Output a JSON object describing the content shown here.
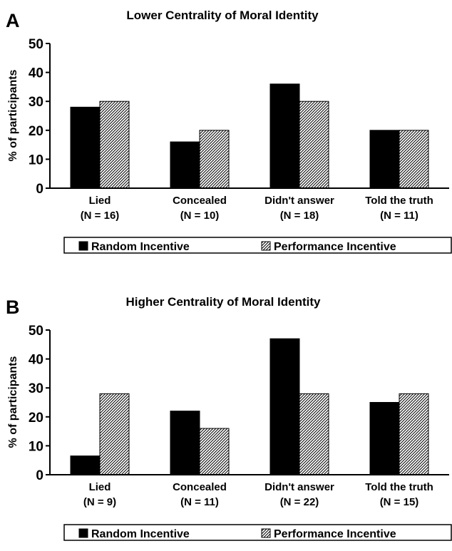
{
  "chart_data": [
    {
      "type": "bar",
      "panel_label": "A",
      "title": "Lower Centrality of Moral Identity",
      "ylabel": "% of participants",
      "xlabel": "",
      "ylim": [
        0,
        50
      ],
      "yticks": [
        0,
        10,
        20,
        30,
        40,
        50
      ],
      "grid": false,
      "legend_position": "bottom",
      "categories": [
        "Lied",
        "Concealed",
        "Didn't answer",
        "Told the truth"
      ],
      "category_n": [
        "(N = 16)",
        "(N = 10)",
        "(N = 18)",
        "(N = 11)"
      ],
      "series": [
        {
          "name": "Random Incentive",
          "fill": "solid",
          "color": "#000000",
          "values": [
            28,
            16,
            36,
            20
          ]
        },
        {
          "name": "Performance Incentive",
          "fill": "hatched",
          "color": "#000000",
          "values": [
            30,
            20,
            30,
            20
          ]
        }
      ]
    },
    {
      "type": "bar",
      "panel_label": "B",
      "title": "Higher Centrality of Moral Identity",
      "ylabel": "% of participants",
      "xlabel": "",
      "ylim": [
        0,
        50
      ],
      "yticks": [
        0,
        10,
        20,
        30,
        40,
        50
      ],
      "grid": false,
      "legend_position": "bottom",
      "categories": [
        "Lied",
        "Concealed",
        "Didn't answer",
        "Told the truth"
      ],
      "category_n": [
        "(N = 9)",
        "(N = 11)",
        "(N = 22)",
        "(N = 15)"
      ],
      "series": [
        {
          "name": "Random Incentive",
          "fill": "solid",
          "color": "#000000",
          "values": [
            6.5,
            22,
            47,
            25
          ]
        },
        {
          "name": "Performance Incentive",
          "fill": "hatched",
          "color": "#000000",
          "values": [
            28,
            16,
            28,
            28
          ]
        }
      ]
    }
  ]
}
